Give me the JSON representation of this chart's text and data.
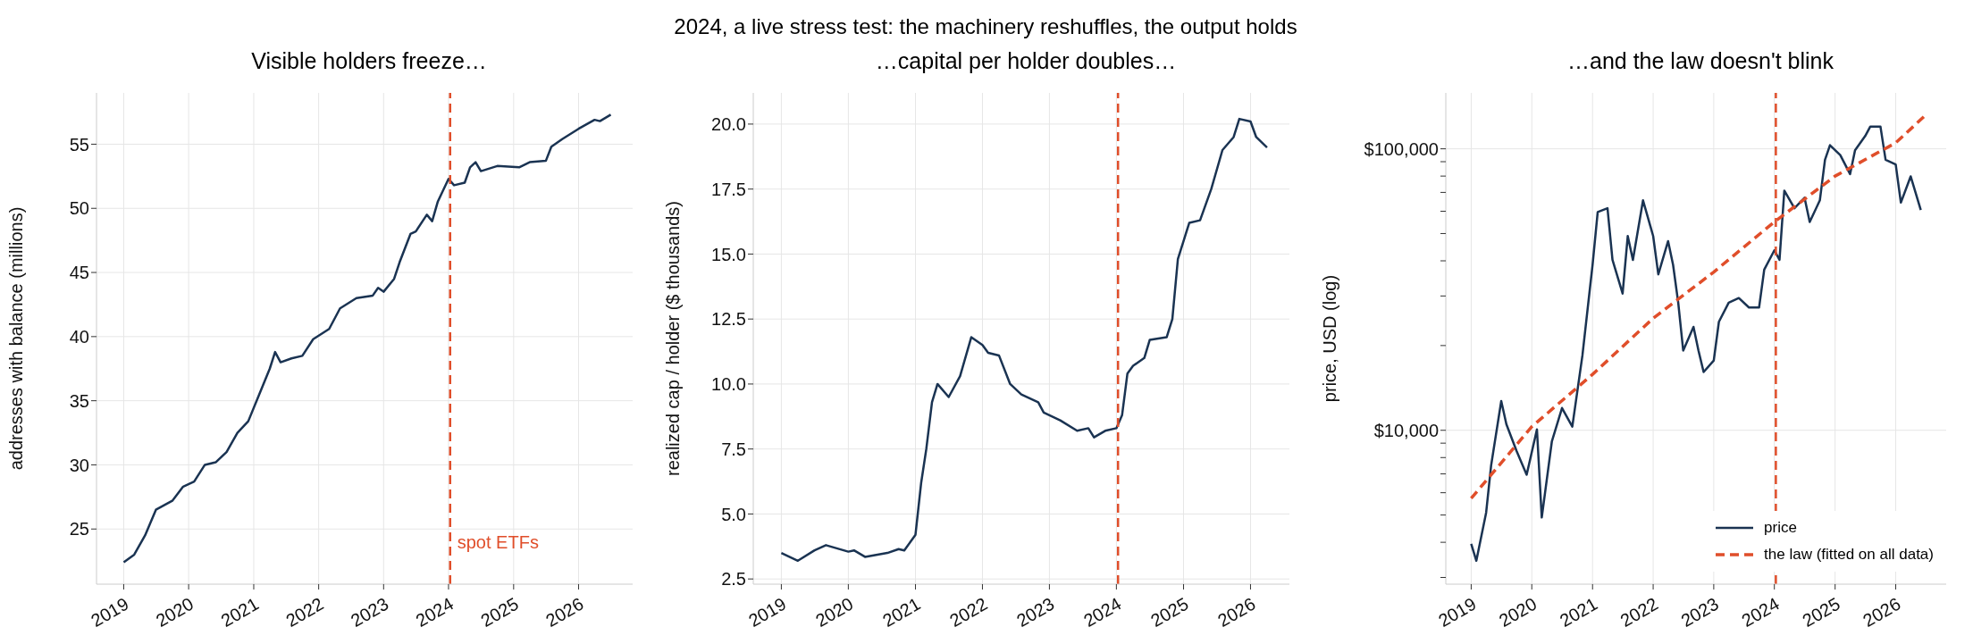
{
  "chart_data": [
    {
      "type": "other",
      "title": "2024, a live stress test: the machinery reshuffles, the output holds"
    },
    {
      "type": "line",
      "title": "Visible holders freeze…",
      "ylabel": "addresses with balance (millions)",
      "grid": true,
      "marker": "none",
      "xlim": [
        "2018-08",
        "2026-11"
      ],
      "xticks": [
        "2019",
        "2020",
        "2021",
        "2022",
        "2023",
        "2024",
        "2025",
        "2026"
      ],
      "ylim": [
        20.7,
        59
      ],
      "yticks": [
        25,
        30,
        35,
        40,
        45,
        50,
        55
      ],
      "x": [
        "2019-01",
        "2019-03",
        "2019-05",
        "2019-07",
        "2019-10",
        "2019-12",
        "2020-02",
        "2020-04",
        "2020-06",
        "2020-08",
        "2020-10",
        "2020-12",
        "2021-02",
        "2021-04",
        "2021-05",
        "2021-06",
        "2021-08",
        "2021-10",
        "2021-12",
        "2022-03",
        "2022-05",
        "2022-08",
        "2022-11",
        "2022-12",
        "2023-01",
        "2023-03",
        "2023-04",
        "2023-06",
        "2023-07",
        "2023-09",
        "2023-10",
        "2023-11",
        "2024-01",
        "2024-02",
        "2024-04",
        "2024-05",
        "2024-06",
        "2024-07",
        "2024-10",
        "2025-02",
        "2025-04",
        "2025-07",
        "2025-08",
        "2025-10",
        "2026-01",
        "2026-04",
        "2026-05",
        "2026-07"
      ],
      "series": [
        {
          "color": "#1a3352",
          "line_style": "solid",
          "values": [
            22.4,
            23.0,
            24.5,
            26.5,
            27.2,
            28.3,
            28.7,
            30.0,
            30.2,
            31.0,
            32.5,
            33.4,
            35.5,
            37.5,
            38.8,
            38.0,
            38.3,
            38.5,
            39.8,
            40.6,
            42.2,
            43.0,
            43.2,
            43.8,
            43.5,
            44.5,
            45.8,
            48.0,
            48.2,
            49.5,
            49.0,
            50.5,
            52.3,
            51.8,
            52.0,
            53.2,
            53.6,
            52.9,
            53.3,
            53.2,
            53.6,
            53.7,
            54.8,
            55.4,
            56.2,
            56.9,
            56.8,
            57.3
          ]
        }
      ],
      "ref_lines": [
        {
          "axis": "x",
          "value": "2024-01-10",
          "label": "spot ETFs",
          "color": "#e04e2a",
          "line_style": "dashed"
        }
      ]
    },
    {
      "type": "line",
      "title": "…capital per holder doubles…",
      "ylabel": "realized cap / holder ($ thousands)",
      "grid": true,
      "marker": "none",
      "xlim": [
        "2018-08",
        "2026-08"
      ],
      "xticks": [
        "2019",
        "2020",
        "2021",
        "2022",
        "2023",
        "2024",
        "2025",
        "2026"
      ],
      "ylim": [
        2.3,
        21.2
      ],
      "yticks": [
        {
          "value": 2.5,
          "label": "2.5"
        },
        {
          "value": 5,
          "label": "5.0"
        },
        {
          "value": 7.5,
          "label": "7.5"
        },
        {
          "value": 10,
          "label": "10.0"
        },
        {
          "value": 12.5,
          "label": "12.5"
        },
        {
          "value": 15,
          "label": "15.0"
        },
        {
          "value": 17.5,
          "label": "17.5"
        },
        {
          "value": 20,
          "label": "20.0"
        }
      ],
      "x": [
        "2019-01",
        "2019-04",
        "2019-07",
        "2019-09",
        "2020-01",
        "2020-02",
        "2020-04",
        "2020-08",
        "2020-10",
        "2020-11",
        "2021-01",
        "2021-02",
        "2021-03",
        "2021-04",
        "2021-05",
        "2021-07",
        "2021-09",
        "2021-11",
        "2022-01",
        "2022-02",
        "2022-04",
        "2022-06",
        "2022-08",
        "2022-11",
        "2022-12",
        "2023-03",
        "2023-06",
        "2023-08",
        "2023-09",
        "2023-11",
        "2024-01",
        "2024-02",
        "2024-03",
        "2024-04",
        "2024-06",
        "2024-07",
        "2024-10",
        "2024-11",
        "2024-12",
        "2025-01",
        "2025-02",
        "2025-04",
        "2025-06",
        "2025-08",
        "2025-10",
        "2025-11",
        "2026-01",
        "2026-02",
        "2026-04"
      ],
      "series": [
        {
          "color": "#1a3352",
          "line_style": "solid",
          "values": [
            3.5,
            3.2,
            3.6,
            3.8,
            3.55,
            3.6,
            3.35,
            3.5,
            3.65,
            3.6,
            4.2,
            6.2,
            7.5,
            9.3,
            10.0,
            9.5,
            10.3,
            11.8,
            11.5,
            11.2,
            11.1,
            10.0,
            9.6,
            9.3,
            8.9,
            8.6,
            8.2,
            8.3,
            7.95,
            8.2,
            8.3,
            8.8,
            10.4,
            10.7,
            11.0,
            11.7,
            11.8,
            12.5,
            14.8,
            15.5,
            16.2,
            16.3,
            17.5,
            19.0,
            19.5,
            20.2,
            20.1,
            19.5,
            19.1
          ]
        }
      ],
      "ref_lines": [
        {
          "axis": "x",
          "value": "2024-01-10",
          "color": "#e04e2a",
          "line_style": "dashed"
        }
      ]
    },
    {
      "type": "line",
      "title": "…and the law doesn't blink",
      "ylabel": "price, USD (log)",
      "grid": true,
      "marker": "none",
      "log": "y",
      "legend": "bottom right",
      "xlim": [
        "2018-08",
        "2026-11"
      ],
      "xticks": [
        "2019",
        "2020",
        "2021",
        "2022",
        "2023",
        "2024",
        "2025",
        "2026"
      ],
      "ylim": [
        2840,
        158000
      ],
      "yticks": [
        {
          "value": 3000,
          "label": null
        },
        {
          "value": 4000,
          "label": null
        },
        {
          "value": 5000,
          "label": null
        },
        {
          "value": 6000,
          "label": null
        },
        {
          "value": 7000,
          "label": null
        },
        {
          "value": 8000,
          "label": null
        },
        {
          "value": 9000,
          "label": null
        },
        {
          "value": 10000,
          "label": "$10,000"
        },
        {
          "value": 20000,
          "label": null
        },
        {
          "value": 30000,
          "label": null
        },
        {
          "value": 40000,
          "label": null
        },
        {
          "value": 50000,
          "label": null
        },
        {
          "value": 60000,
          "label": null
        },
        {
          "value": 70000,
          "label": null
        },
        {
          "value": 80000,
          "label": null
        },
        {
          "value": 90000,
          "label": null
        },
        {
          "value": 100000,
          "label": "$100,000"
        }
      ],
      "series": [
        {
          "name": "price",
          "color": "#1a3352",
          "line_style": "solid",
          "x": [
            "2019-01",
            "2019-02",
            "2019-04",
            "2019-05",
            "2019-07",
            "2019-08",
            "2019-10",
            "2019-12",
            "2020-02",
            "2020-03",
            "2020-05",
            "2020-07",
            "2020-09",
            "2020-11",
            "2021-01",
            "2021-02",
            "2021-04",
            "2021-05",
            "2021-07",
            "2021-08",
            "2021-09",
            "2021-11",
            "2022-01",
            "2022-02",
            "2022-04",
            "2022-05",
            "2022-06",
            "2022-07",
            "2022-09",
            "2022-10",
            "2022-11",
            "2023-01",
            "2023-02",
            "2023-04",
            "2023-06",
            "2023-08",
            "2023-10",
            "2023-11",
            "2024-01",
            "2024-02",
            "2024-03",
            "2024-05",
            "2024-07",
            "2024-08",
            "2024-10",
            "2024-11",
            "2024-12",
            "2025-02",
            "2025-04",
            "2025-05",
            "2025-07",
            "2025-08",
            "2025-10",
            "2025-11",
            "2026-01",
            "2026-02",
            "2026-04",
            "2026-06"
          ],
          "values": [
            3950,
            3440,
            5100,
            7500,
            12700,
            10500,
            8450,
            6950,
            10070,
            4900,
            9140,
            12000,
            10300,
            18450,
            38700,
            59600,
            61500,
            40300,
            30600,
            49000,
            40300,
            65600,
            49000,
            35800,
            47000,
            38700,
            28400,
            19200,
            23300,
            19200,
            16100,
            17700,
            24300,
            28400,
            29500,
            27300,
            27300,
            37200,
            43600,
            40300,
            71000,
            61500,
            67000,
            55000,
            65600,
            91400,
            103000,
            95000,
            81300,
            98800,
            111000,
            120000,
            120000,
            91400,
            88000,
            64400,
            79800,
            60600
          ]
        },
        {
          "name": "the law (fitted on all data)",
          "color": "#e04e2a",
          "line_style": "dashed",
          "x": [
            "2019-01",
            "2020-01",
            "2021-01",
            "2022-01",
            "2023-01",
            "2024-01",
            "2025-01",
            "2026-01",
            "2026-07"
          ],
          "values": [
            5730,
            10300,
            15800,
            25000,
            36500,
            55000,
            80000,
            105000,
            132000
          ]
        }
      ],
      "ref_lines": [
        {
          "axis": "x",
          "value": "2024-01-10",
          "color": "#e04e2a",
          "line_style": "dashed"
        }
      ]
    }
  ]
}
